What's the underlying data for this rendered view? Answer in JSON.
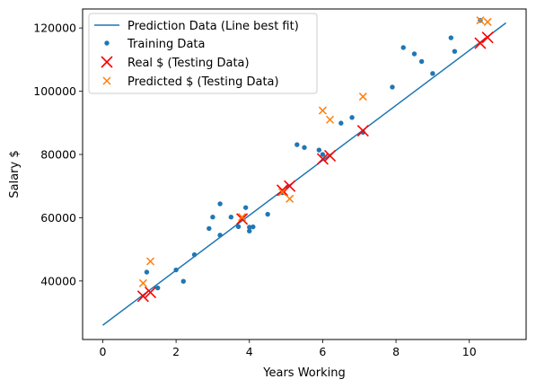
{
  "chart_data": {
    "type": "scatter",
    "xlabel": "Years Working",
    "ylabel": "Salary $",
    "xlim": [
      -0.55,
      11.55
    ],
    "ylim": [
      21500,
      126000
    ],
    "xticks": [
      0,
      2,
      4,
      6,
      8,
      10
    ],
    "yticks": [
      40000,
      60000,
      80000,
      100000,
      120000
    ],
    "legend_position": "top-left",
    "grid": false,
    "series": [
      {
        "name": "Prediction Data (Line best fit)",
        "kind": "line",
        "color": "#1f77b4",
        "x": [
          0,
          11
        ],
        "y": [
          26000,
          121600
        ]
      },
      {
        "name": "Training Data",
        "kind": "dot",
        "color": "#1f77b4",
        "x": [
          1.2,
          1.5,
          2.0,
          2.2,
          2.5,
          2.9,
          3.0,
          3.2,
          3.2,
          3.5,
          3.7,
          3.9,
          4.0,
          4.0,
          4.1,
          4.5,
          4.9,
          5.3,
          5.5,
          5.9,
          6.0,
          6.5,
          6.8,
          7.1,
          7.9,
          8.2,
          8.5,
          8.7,
          9.0,
          9.5,
          9.6,
          10.3
        ],
        "y": [
          42800,
          37800,
          43500,
          39900,
          48300,
          56600,
          60200,
          54500,
          64400,
          60200,
          57200,
          63200,
          55800,
          57000,
          57100,
          61100,
          67900,
          83100,
          82200,
          81400,
          80000,
          89900,
          91700,
          87000,
          101300,
          113800,
          111800,
          109400,
          105600,
          116900,
          112600,
          122400
        ]
      },
      {
        "name": "Real $ (Testing Data)",
        "kind": "plus",
        "color": "#ff0000",
        "x": [
          1.1,
          1.3,
          3.8,
          4.9,
          5.1,
          6.0,
          6.2,
          7.1,
          10.3,
          10.5
        ],
        "y": [
          35200,
          36400,
          59600,
          68700,
          70000,
          78600,
          79600,
          87500,
          115200,
          117000
        ]
      },
      {
        "name": "Predicted $ (Testing Data)",
        "kind": "x",
        "color": "#ff7f0e",
        "x": [
          1.1,
          1.3,
          3.8,
          4.9,
          5.1,
          6.0,
          6.2,
          7.1,
          10.3,
          10.5
        ],
        "y": [
          39300,
          46200,
          60200,
          68100,
          66000,
          93900,
          91000,
          98300,
          122400,
          121900
        ]
      }
    ]
  }
}
